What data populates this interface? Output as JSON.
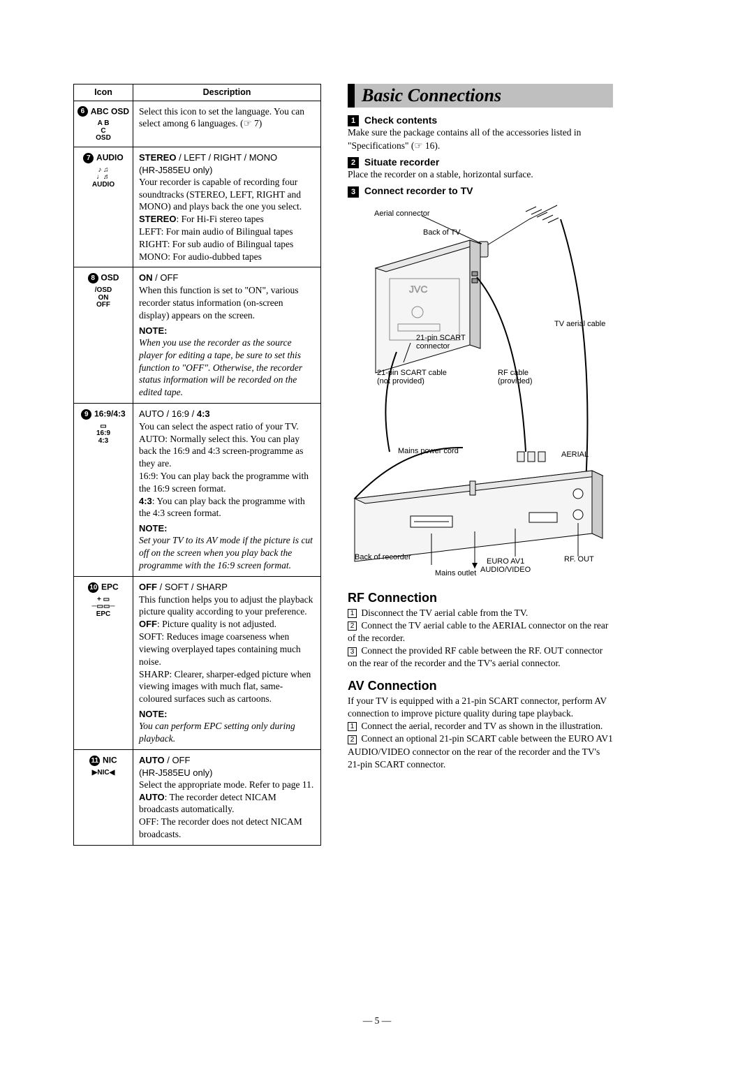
{
  "table": {
    "headers": {
      "icon": "Icon",
      "description": "Description"
    },
    "rows": [
      {
        "num": "6",
        "label": "ABC OSD",
        "glyph_lines": [
          "A  B",
          "C",
          "OSD"
        ],
        "title": "",
        "body_html": "Select this icon to set the language. You can select among 6 languages. (☞ 7)"
      },
      {
        "num": "7",
        "label": "AUDIO",
        "glyph_lines": [
          "♪ ♫",
          "♩♬",
          "AUDIO"
        ],
        "title": "STEREO",
        "title_tail": " / LEFT / RIGHT / MONO",
        "sub": "(HR-J585EU only)",
        "body_html": "Your recorder is capable of recording four soundtracks (STEREO, LEFT, RIGHT and MONO) and plays back the one you select.<br><span class='strong'>STEREO</span>: For Hi-Fi stereo tapes<br>LEFT: For main audio of Bilingual tapes<br>RIGHT: For sub audio of Bilingual tapes<br>MONO: For audio-dubbed tapes"
      },
      {
        "num": "8",
        "label": "OSD",
        "glyph_lines": [
          "/OSD",
          "ON",
          "OFF"
        ],
        "title": "ON",
        "title_tail": " / OFF",
        "body_html": "When this function is set to \"ON\", various recorder status information (on-screen display) appears on the screen.",
        "note": "When you use the recorder as the source player for editing a tape, be sure to set this function to \"OFF\". Otherwise, the recorder status information will be recorded on the edited tape."
      },
      {
        "num": "9",
        "label": "16:9/4:3",
        "glyph_lines": [
          "▭",
          "16:9",
          "4:3"
        ],
        "title": "",
        "title_head": "AUTO / 16:9 / ",
        "title_bold_tail": "4:3",
        "body_html": "You can select the aspect ratio of your TV.<br>AUTO: Normally select this. You can play back the 16:9 and 4:3 screen-programme as they are.<br>16:9: You can play back the programme with the 16:9 screen format.<br><span class='strong'>4:3</span>: You can play back the programme with the 4:3 screen format.",
        "note": "Set your TV to its AV mode if the picture is cut off on the screen when you play back the programme with the 16:9 screen format."
      },
      {
        "num": "10",
        "label": "EPC",
        "glyph_lines": [
          "+ ▭",
          "─▭▭─",
          "EPC"
        ],
        "title": "OFF",
        "title_tail": " / SOFT / SHARP",
        "body_html": "This function helps you to adjust the playback picture quality according to your preference.<br><span class='strong'>OFF</span>: Picture quality is not adjusted.<br>SOFT: Reduces image coarseness when viewing overplayed tapes containing much noise.<br>SHARP: Clearer, sharper-edged picture when viewing images with much flat, same-coloured surfaces such as cartoons.",
        "note": "You can perform EPC setting only during playback."
      },
      {
        "num": "11",
        "label": "NIC",
        "glyph_lines": [
          "▶NIC◀"
        ],
        "title": "AUTO",
        "title_tail": " / OFF",
        "sub": "(HR-J585EU only)",
        "body_html": "Select the appropriate mode. Refer to page 11.<br><span class='strong'>AUTO</span>: The recorder detect NICAM broadcasts automatically.<br>OFF: The recorder does not detect NICAM broadcasts."
      }
    ]
  },
  "right": {
    "section_title": "Basic Connections",
    "steps": [
      {
        "num": "1",
        "head": "Check contents",
        "body": "Make sure the package contains all of the accessories listed in \"Specifications\" (☞ 16)."
      },
      {
        "num": "2",
        "head": "Situate recorder",
        "body": "Place the recorder on a stable, horizontal surface."
      },
      {
        "num": "3",
        "head": "Connect recorder to TV",
        "body": ""
      }
    ],
    "diagram_labels": {
      "aerial_connector": "Aerial connector",
      "back_of_tv": "Back of TV",
      "tv_aerial_cable": "TV aerial cable",
      "scart_conn": "21-pin SCART connector",
      "scart_cable": "21-pin SCART cable (not provided)",
      "rf_cable": "RF cable (provided)",
      "mains_cord": "Mains power cord",
      "aerial": "AERIAL",
      "back_of_recorder": "Back of recorder",
      "mains_outlet": "Mains outlet",
      "euro_av1": "EURO AV1 AUDIO/VIDEO",
      "rf_out": "RF. OUT"
    },
    "rf": {
      "head": "RF Connection",
      "items": [
        "Disconnect the TV aerial cable from the TV.",
        "Connect the TV aerial cable to the AERIAL connector on the rear of the recorder.",
        "Connect the provided RF cable between the RF. OUT connector on the rear of the recorder and the TV's aerial connector."
      ]
    },
    "av": {
      "head": "AV Connection",
      "intro": "If your TV is equipped with a 21-pin SCART connector, perform AV connection to improve picture quality during tape playback.",
      "items": [
        "Connect the aerial, recorder and TV as shown in the illustration.",
        "Connect an optional 21-pin SCART cable between the EURO AV1 AUDIO/VIDEO connector on the rear of the recorder and the TV's 21-pin SCART connector."
      ]
    }
  },
  "note_label": "NOTE:",
  "page_number": "— 5 —"
}
